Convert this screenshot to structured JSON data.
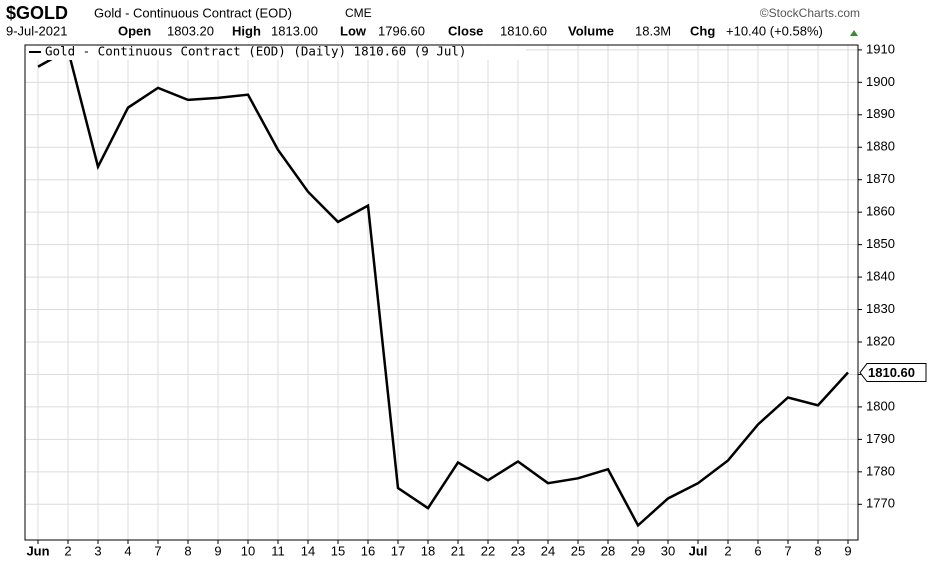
{
  "chart_data": {
    "type": "line",
    "header": {
      "symbol": "$GOLD",
      "name": "Gold - Continuous Contract (EOD)",
      "exchange": "CME",
      "source": "©StockCharts.com",
      "date": "9-Jul-2021",
      "open_label": "Open",
      "open": "1803.20",
      "high_label": "High",
      "high": "1813.00",
      "low_label": "Low",
      "low": "1796.60",
      "close_label": "Close",
      "close": "1810.60",
      "volume_label": "Volume",
      "volume": "18.3M",
      "chg_label": "Chg",
      "chg": "+10.40 (+0.58%)",
      "last_label": "1810.60"
    },
    "categories": [
      "Jun",
      "2",
      "3",
      "4",
      "7",
      "8",
      "9",
      "10",
      "11",
      "14",
      "15",
      "16",
      "17",
      "18",
      "21",
      "22",
      "23",
      "24",
      "25",
      "28",
      "29",
      "30",
      "Jul",
      "2",
      "6",
      "7",
      "8",
      "9"
    ],
    "series": [
      {
        "name": "Gold - Continuous Contract (EOD) (Daily) 1810.60 (9 Jul)",
        "color": "#000000",
        "values": [
          1904.8,
          1910,
          1874,
          1892.2,
          1898.3,
          1894.6,
          1895.2,
          1896.2,
          1879.2,
          1866.3,
          1857,
          1862,
          1775,
          1768.8,
          1782.9,
          1777.4,
          1783.2,
          1776.5,
          1778,
          1780.8,
          1763.5,
          1771.8,
          1776.5,
          1783.5,
          1794.6,
          1802.9,
          1800.5,
          1810.6
        ]
      }
    ],
    "ylim": [
      1759,
      1911.5
    ],
    "yticks": [
      1770,
      1780,
      1790,
      1800,
      1810,
      1820,
      1830,
      1840,
      1850,
      1860,
      1870,
      1880,
      1890,
      1900,
      1910
    ],
    "grid": true
  }
}
